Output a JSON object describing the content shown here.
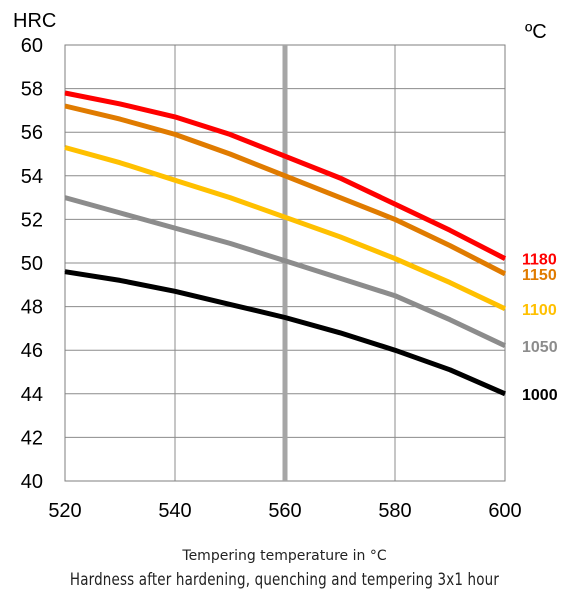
{
  "chart_data": {
    "type": "line",
    "title": "Hardness after hardening, quenching and tempering  3x1 hour",
    "xlabel": "Tempering temperature in °C",
    "ylabel": "HRC",
    "legend_title": "ºC",
    "xlim": [
      520,
      600
    ],
    "ylim": [
      40,
      60
    ],
    "x_ticks": [
      520,
      540,
      560,
      580,
      600
    ],
    "y_ticks": [
      40,
      42,
      44,
      46,
      48,
      50,
      52,
      54,
      56,
      58,
      60
    ],
    "grid": true,
    "legend_placement": "right",
    "highlight_x": 560,
    "highlight_color": "#a6a6a6",
    "series": [
      {
        "name": "1180",
        "color": "#ff0000",
        "x": [
          520,
          530,
          540,
          550,
          560,
          570,
          580,
          590,
          600
        ],
        "values": [
          57.8,
          57.3,
          56.7,
          55.9,
          54.9,
          53.9,
          52.7,
          51.5,
          50.2
        ]
      },
      {
        "name": "1150",
        "color": "#e07b00",
        "x": [
          520,
          530,
          540,
          550,
          560,
          570,
          580,
          590,
          600
        ],
        "values": [
          57.2,
          56.6,
          55.9,
          55.0,
          54.0,
          53.0,
          52.0,
          50.8,
          49.5
        ]
      },
      {
        "name": "1100",
        "color": "#ffc000",
        "x": [
          520,
          530,
          540,
          550,
          560,
          570,
          580,
          590,
          600
        ],
        "values": [
          55.3,
          54.6,
          53.8,
          53.0,
          52.1,
          51.2,
          50.2,
          49.1,
          47.9
        ]
      },
      {
        "name": "1050",
        "color": "#8c8c8c",
        "x": [
          520,
          530,
          540,
          550,
          560,
          570,
          580,
          590,
          600
        ],
        "values": [
          53.0,
          52.3,
          51.6,
          50.9,
          50.1,
          49.3,
          48.5,
          47.4,
          46.2
        ]
      },
      {
        "name": "1000",
        "color": "#000000",
        "x": [
          520,
          530,
          540,
          550,
          560,
          570,
          580,
          590,
          600
        ],
        "values": [
          49.6,
          49.2,
          48.7,
          48.1,
          47.5,
          46.8,
          46.0,
          45.1,
          44.0
        ]
      }
    ]
  }
}
